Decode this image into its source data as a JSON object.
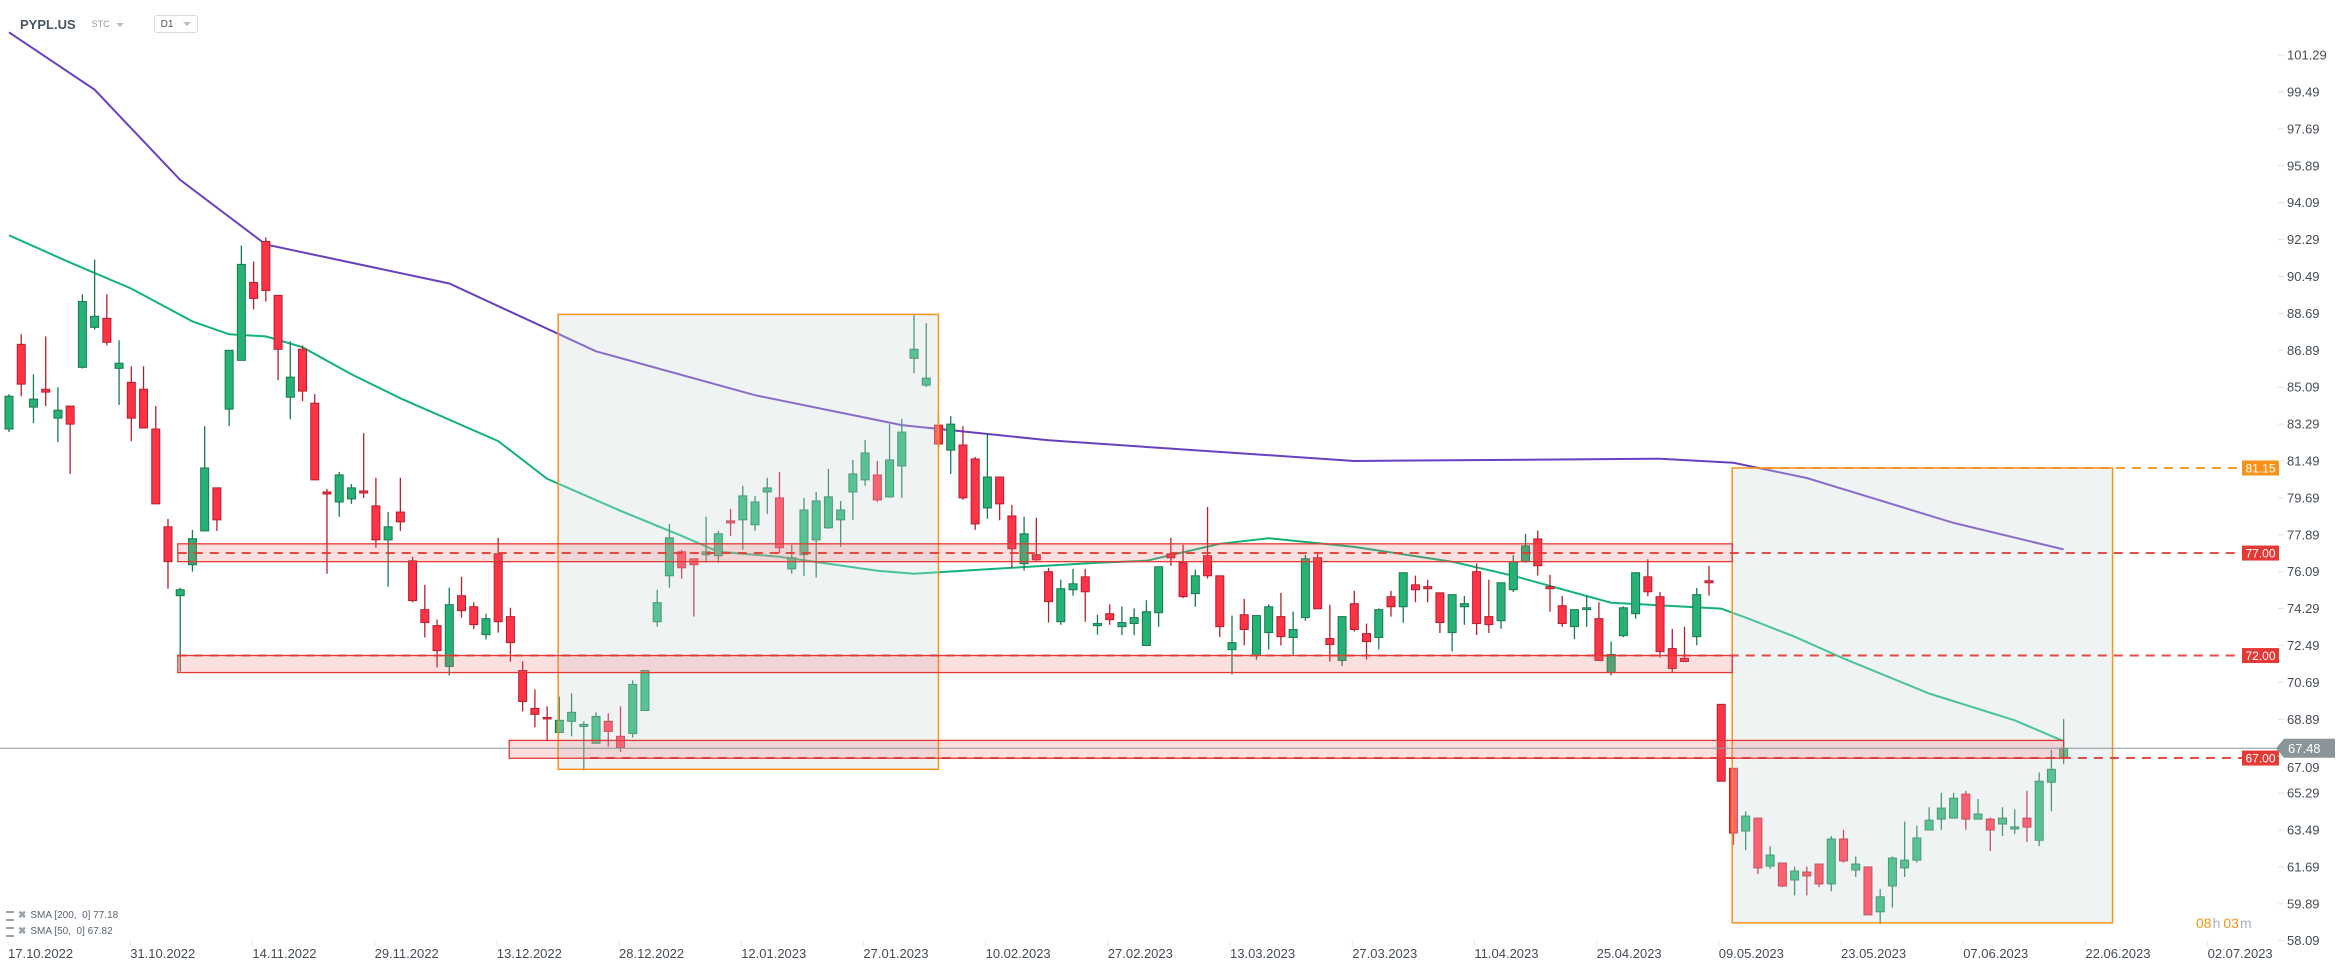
{
  "header": {
    "symbol": "PYPL.US",
    "market": "STC",
    "timeframe": "D1"
  },
  "legend": [
    {
      "label": "SMA [200,  0] 77.18"
    },
    {
      "label": "SMA [50,  0] 67.82"
    }
  ],
  "countdown": {
    "hours": "08",
    "hours_unit": "h",
    "minutes": "03",
    "minutes_unit": "m"
  },
  "colors": {
    "up": "#26b276",
    "up_border": "#187a4e",
    "down": "#ff3347",
    "down_border": "#b71f2e",
    "sma200": "#6a3fc0",
    "sma50": "#12b37a",
    "zone": "#e53935",
    "box": "#f7931a",
    "current": "#8a9499"
  },
  "chart_data": {
    "type": "candlestick",
    "title": "PYPL.US D1",
    "ylim": [
      58.09,
      101.29
    ],
    "y_ticks": [
      "101.29",
      "99.49",
      "97.69",
      "95.89",
      "94.09",
      "92.29",
      "90.49",
      "88.69",
      "86.89",
      "85.09",
      "83.29",
      "81.49",
      "79.69",
      "77.89",
      "76.09",
      "74.29",
      "72.49",
      "70.69",
      "68.89",
      "67.09",
      "65.29",
      "63.49",
      "61.69",
      "59.89",
      "58.09"
    ],
    "x_ticks": [
      "17.10.2022",
      "31.10.2022",
      "14.11.2022",
      "29.11.2022",
      "13.12.2022",
      "28.12.2022",
      "12.01.2023",
      "27.01.2023",
      "10.02.2023",
      "27.02.2023",
      "13.03.2023",
      "27.03.2023",
      "11.04.2023",
      "25.04.2023",
      "09.05.2023",
      "23.05.2023",
      "07.06.2023",
      "22.06.2023",
      "02.07.2023"
    ],
    "candles_ohlc": [
      [
        83.05,
        84.75,
        82.9,
        84.65
      ],
      [
        87.18,
        87.67,
        84.65,
        85.24
      ],
      [
        84.12,
        85.72,
        83.34,
        84.51
      ],
      [
        84.99,
        87.57,
        84.17,
        84.85
      ],
      [
        83.58,
        85.09,
        82.41,
        83.97
      ],
      [
        84.17,
        84.17,
        80.86,
        83.29
      ],
      [
        86.06,
        89.62,
        86.0,
        89.27
      ],
      [
        88.01,
        91.32,
        87.9,
        88.55
      ],
      [
        88.45,
        89.62,
        87.13,
        87.28
      ],
      [
        86.01,
        87.38,
        84.22,
        86.26
      ],
      [
        85.33,
        86.11,
        82.46,
        83.58
      ],
      [
        84.99,
        86.11,
        83.1,
        83.1
      ],
      [
        83.05,
        84.17,
        79.4,
        79.4
      ],
      [
        78.28,
        78.67,
        75.26,
        76.58
      ],
      [
        74.92,
        75.31,
        71.22,
        75.21
      ],
      [
        76.43,
        78.13,
        76.09,
        77.7
      ],
      [
        78.08,
        83.19,
        78.08,
        81.15
      ],
      [
        80.18,
        80.18,
        78.08,
        78.62
      ],
      [
        84.02,
        86.89,
        83.19,
        86.89
      ],
      [
        86.4,
        92.0,
        86.4,
        91.08
      ],
      [
        90.2,
        91.22,
        88.89,
        89.42
      ],
      [
        92.2,
        92.4,
        89.27,
        89.81
      ],
      [
        89.57,
        89.57,
        85.43,
        86.94
      ],
      [
        84.6,
        87.33,
        83.53,
        85.58
      ],
      [
        86.94,
        87.13,
        84.41,
        84.9
      ],
      [
        84.31,
        84.75,
        80.57,
        80.57
      ],
      [
        79.98,
        80.13,
        75.99,
        79.88
      ],
      [
        79.49,
        80.96,
        78.77,
        80.81
      ],
      [
        79.64,
        80.37,
        79.4,
        80.18
      ],
      [
        80.03,
        82.85,
        79.69,
        79.93
      ],
      [
        79.3,
        80.67,
        77.26,
        77.64
      ],
      [
        77.64,
        79.0,
        75.36,
        78.28
      ],
      [
        79.0,
        80.67,
        78.08,
        78.52
      ],
      [
        76.62,
        76.82,
        74.6,
        74.68
      ],
      [
        74.24,
        75.45,
        72.88,
        73.61
      ],
      [
        73.46,
        73.75,
        71.42,
        72.24
      ],
      [
        71.47,
        75.31,
        71.03,
        74.48
      ],
      [
        74.92,
        75.84,
        73.85,
        74.19
      ],
      [
        74.38,
        74.6,
        73.3,
        73.51
      ],
      [
        73.02,
        74.04,
        72.78,
        73.8
      ],
      [
        76.96,
        77.74,
        73.12,
        73.65
      ],
      [
        73.9,
        74.33,
        71.71,
        72.63
      ],
      [
        71.27,
        71.71,
        69.28,
        69.76
      ],
      [
        69.42,
        70.35,
        68.5,
        69.13
      ],
      [
        68.98,
        69.52,
        67.82,
        68.93
      ],
      [
        68.25,
        70.0,
        68.2,
        68.84
      ],
      [
        68.79,
        70.16,
        68.06,
        69.23
      ],
      [
        68.54,
        68.79,
        66.4,
        68.64
      ],
      [
        67.72,
        69.23,
        67.72,
        69.03
      ],
      [
        68.79,
        69.18,
        67.56,
        68.3
      ],
      [
        68.06,
        69.52,
        67.3,
        67.52
      ],
      [
        68.2,
        70.79,
        68.0,
        70.59
      ],
      [
        69.32,
        71.27,
        69.32,
        71.27
      ],
      [
        73.65,
        75.21,
        73.41,
        74.58
      ],
      [
        75.89,
        78.42,
        75.31,
        77.74
      ],
      [
        77.06,
        77.16,
        75.75,
        76.28
      ],
      [
        76.72,
        76.72,
        73.9,
        76.43
      ],
      [
        76.92,
        78.77,
        76.53,
        77.06
      ],
      [
        76.87,
        78.08,
        76.53,
        77.94
      ],
      [
        78.57,
        79.15,
        77.84,
        78.47
      ],
      [
        78.62,
        80.28,
        77.16,
        79.79
      ],
      [
        78.38,
        79.79,
        78.08,
        79.49
      ],
      [
        79.98,
        80.67,
        78.91,
        80.18
      ],
      [
        79.69,
        80.96,
        77.0,
        77.26
      ],
      [
        76.23,
        77.4,
        75.99,
        76.77
      ],
      [
        76.92,
        79.69,
        75.89,
        79.1
      ],
      [
        77.64,
        79.98,
        75.8,
        79.54
      ],
      [
        78.23,
        81.1,
        78.18,
        79.74
      ],
      [
        78.62,
        79.54,
        77.3,
        79.1
      ],
      [
        79.98,
        81.54,
        78.62,
        80.86
      ],
      [
        80.57,
        82.51,
        80.28,
        81.88
      ],
      [
        80.81,
        81.49,
        79.5,
        79.59
      ],
      [
        79.74,
        83.29,
        79.7,
        81.54
      ],
      [
        81.25,
        83.53,
        79.69,
        82.9
      ],
      [
        86.5,
        88.6,
        85.77,
        86.94
      ],
      [
        85.19,
        88.21,
        85.1,
        85.53
      ],
      [
        83.24,
        83.78,
        82.17,
        82.32
      ],
      [
        82.02,
        83.68,
        80.86,
        83.29
      ],
      [
        82.27,
        83.19,
        79.6,
        79.69
      ],
      [
        81.59,
        81.69,
        78.13,
        78.42
      ],
      [
        79.2,
        82.85,
        78.67,
        80.71
      ],
      [
        80.71,
        80.71,
        78.6,
        79.4
      ],
      [
        78.81,
        79.35,
        76.28,
        77.21
      ],
      [
        76.48,
        78.77,
        76.14,
        77.94
      ],
      [
        76.92,
        78.72,
        76.62,
        76.67
      ],
      [
        76.09,
        76.28,
        73.61,
        74.63
      ],
      [
        73.65,
        75.7,
        73.5,
        75.26
      ],
      [
        75.21,
        76.23,
        74.92,
        75.5
      ],
      [
        75.84,
        76.23,
        73.65,
        75.11
      ],
      [
        73.46,
        73.99,
        73.02,
        73.56
      ],
      [
        74.04,
        74.5,
        73.5,
        73.75
      ],
      [
        73.41,
        74.4,
        73.0,
        73.61
      ],
      [
        73.56,
        74.3,
        73.0,
        73.85
      ],
      [
        72.49,
        74.7,
        72.49,
        74.14
      ],
      [
        74.09,
        76.33,
        73.4,
        76.33
      ],
      [
        76.96,
        77.74,
        76.38,
        76.77
      ],
      [
        76.53,
        77.4,
        74.8,
        74.87
      ],
      [
        75.02,
        76.19,
        74.38,
        75.89
      ],
      [
        76.87,
        79.25,
        75.75,
        75.89
      ],
      [
        75.89,
        75.89,
        72.9,
        73.41
      ],
      [
        72.29,
        73.95,
        71.08,
        72.63
      ],
      [
        73.99,
        74.77,
        72.5,
        73.27
      ],
      [
        72.0,
        73.95,
        71.8,
        73.95
      ],
      [
        73.12,
        74.5,
        72.3,
        74.38
      ],
      [
        73.9,
        75.06,
        72.49,
        72.92
      ],
      [
        72.88,
        74.14,
        72.0,
        73.27
      ],
      [
        73.85,
        76.9,
        73.7,
        76.72
      ],
      [
        76.77,
        77.06,
        74.28,
        74.28
      ],
      [
        72.83,
        74.48,
        71.71,
        72.54
      ],
      [
        71.76,
        73.9,
        71.5,
        73.9
      ],
      [
        74.53,
        75.16,
        73.17,
        73.27
      ],
      [
        73.07,
        73.56,
        71.8,
        72.68
      ],
      [
        72.88,
        74.3,
        72.3,
        74.24
      ],
      [
        74.87,
        75.16,
        73.9,
        74.38
      ],
      [
        74.38,
        76.04,
        73.6,
        76.04
      ],
      [
        75.45,
        75.9,
        74.6,
        75.21
      ],
      [
        75.36,
        75.7,
        74.6,
        75.26
      ],
      [
        75.06,
        75.06,
        73.1,
        73.61
      ],
      [
        73.12,
        74.97,
        72.2,
        74.97
      ],
      [
        74.38,
        74.9,
        73.5,
        74.53
      ],
      [
        76.09,
        76.5,
        73.0,
        73.56
      ],
      [
        73.9,
        75.7,
        73.1,
        73.51
      ],
      [
        73.7,
        75.55,
        73.3,
        75.55
      ],
      [
        75.21,
        76.9,
        75.1,
        76.58
      ],
      [
        76.58,
        77.94,
        76.53,
        77.35
      ],
      [
        77.69,
        78.1,
        75.9,
        76.38
      ],
      [
        75.36,
        75.94,
        74.14,
        75.26
      ],
      [
        74.43,
        74.9,
        73.4,
        73.56
      ],
      [
        73.41,
        74.24,
        72.8,
        74.24
      ],
      [
        74.24,
        74.9,
        73.4,
        74.33
      ],
      [
        73.8,
        74.6,
        71.76,
        71.76
      ],
      [
        71.17,
        72.68,
        71.03,
        72.05
      ],
      [
        72.97,
        74.4,
        72.9,
        74.33
      ],
      [
        74.04,
        76.04,
        73.8,
        76.04
      ],
      [
        75.84,
        76.7,
        74.9,
        75.11
      ],
      [
        74.87,
        75.1,
        71.9,
        72.19
      ],
      [
        72.34,
        73.3,
        71.2,
        71.37
      ],
      [
        71.86,
        73.4,
        71.7,
        71.71
      ],
      [
        72.92,
        75.3,
        72.5,
        74.97
      ],
      [
        75.65,
        76.38,
        74.92,
        75.55
      ],
      [
        69.62,
        69.62,
        65.87,
        65.87
      ],
      [
        66.5,
        66.5,
        62.76,
        63.34
      ],
      [
        63.44,
        64.4,
        62.5,
        64.17
      ],
      [
        64.07,
        64.1,
        61.34,
        61.64
      ],
      [
        61.73,
        62.7,
        61.6,
        62.27
      ],
      [
        61.88,
        61.9,
        60.7,
        60.76
      ],
      [
        61.05,
        61.7,
        60.3,
        61.49
      ],
      [
        61.44,
        61.7,
        60.3,
        61.25
      ],
      [
        61.83,
        61.83,
        60.7,
        60.86
      ],
      [
        60.86,
        63.2,
        60.5,
        63.05
      ],
      [
        63.05,
        63.5,
        61.9,
        61.98
      ],
      [
        61.54,
        62.2,
        61.2,
        61.83
      ],
      [
        61.69,
        61.69,
        59.35,
        59.35
      ],
      [
        59.5,
        60.6,
        58.9,
        60.23
      ],
      [
        60.76,
        62.2,
        59.7,
        62.12
      ],
      [
        61.64,
        63.9,
        61.2,
        62.02
      ],
      [
        62.02,
        63.7,
        61.9,
        63.1
      ],
      [
        63.49,
        64.6,
        63.49,
        63.97
      ],
      [
        64.02,
        65.3,
        63.5,
        64.56
      ],
      [
        64.07,
        65.3,
        64.07,
        65.04
      ],
      [
        65.24,
        65.4,
        63.5,
        64.02
      ],
      [
        64.02,
        65.0,
        64.0,
        64.27
      ],
      [
        64.02,
        64.1,
        62.46,
        63.49
      ],
      [
        63.78,
        64.6,
        63.2,
        64.07
      ],
      [
        63.54,
        64.5,
        63.3,
        63.64
      ],
      [
        64.07,
        65.4,
        62.9,
        63.63
      ],
      [
        62.99,
        66.3,
        62.7,
        65.87
      ],
      [
        65.82,
        67.4,
        64.4,
        66.45
      ],
      [
        67.04,
        68.9,
        66.7,
        67.48
      ]
    ],
    "series": [
      {
        "name": "SMA 200",
        "period": 200,
        "last": 77.18,
        "points": [
          [
            0,
            102.4
          ],
          [
            7,
            99.6
          ],
          [
            14,
            95.2
          ],
          [
            21,
            92.05
          ],
          [
            36,
            90.15
          ],
          [
            48,
            86.84
          ],
          [
            61,
            84.7
          ],
          [
            73,
            83.24
          ],
          [
            85,
            82.5
          ],
          [
            110,
            81.49
          ],
          [
            135,
            81.6
          ],
          [
            141,
            81.4
          ],
          [
            147,
            80.66
          ],
          [
            159,
            78.47
          ],
          [
            168,
            77.18
          ]
        ]
      },
      {
        "name": "SMA 50",
        "period": 50,
        "last": 67.82,
        "points": [
          [
            0,
            92.5
          ],
          [
            5,
            91.17
          ],
          [
            10,
            89.9
          ],
          [
            15,
            88.3
          ],
          [
            18,
            87.67
          ],
          [
            21,
            87.57
          ],
          [
            24,
            87.04
          ],
          [
            28,
            85.72
          ],
          [
            32,
            84.55
          ],
          [
            40,
            82.46
          ],
          [
            44,
            80.62
          ],
          [
            50,
            79.06
          ],
          [
            55,
            77.84
          ],
          [
            58,
            77.06
          ],
          [
            63,
            76.82
          ],
          [
            71,
            76.14
          ],
          [
            74,
            75.99
          ],
          [
            82,
            76.28
          ],
          [
            89,
            76.53
          ],
          [
            93,
            76.62
          ],
          [
            99,
            77.45
          ],
          [
            103,
            77.72
          ],
          [
            110,
            77.3
          ],
          [
            118,
            76.58
          ],
          [
            123,
            75.89
          ],
          [
            131,
            74.58
          ],
          [
            140,
            74.29
          ],
          [
            142,
            73.85
          ],
          [
            146,
            72.92
          ],
          [
            150,
            71.86
          ],
          [
            157,
            70.15
          ],
          [
            164,
            68.84
          ],
          [
            168,
            67.82
          ]
        ]
      }
    ],
    "levels": [
      {
        "price": 77.0,
        "label": "77.00",
        "kind": "resistance",
        "from_index": 13.8
      },
      {
        "price": 72.0,
        "label": "72.00",
        "kind": "support",
        "from_index": 13.8
      },
      {
        "price": 67.0,
        "label": "67.00",
        "kind": "support",
        "from_index": 47.5
      },
      {
        "price": 81.15,
        "label": "81.15",
        "kind": "target",
        "from_index": 143.5
      }
    ],
    "zones": [
      {
        "from_index": 13.8,
        "to_index": 140.9,
        "top": 77.45,
        "bottom": 76.58
      },
      {
        "from_index": 13.8,
        "to_index": 140.9,
        "top": 72.0,
        "bottom": 71.17
      },
      {
        "from_index": 40.9,
        "to_index": 168.0,
        "top": 67.86,
        "bottom": 66.99
      }
    ],
    "boxes": [
      {
        "from_index": 44.9,
        "to_index": 76.0,
        "top": 88.64,
        "bottom": 66.45
      },
      {
        "from_index": 140.9,
        "to_index": 172.0,
        "top": 81.15,
        "bottom": 58.96
      }
    ],
    "current_price": {
      "value": 67.48,
      "label": "67.48"
    }
  }
}
